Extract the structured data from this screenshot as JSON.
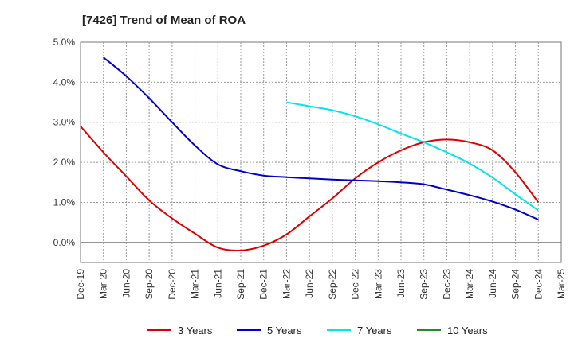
{
  "chart_data": {
    "type": "line",
    "title": "[7426]  Trend of Mean of ROA",
    "xlabel": "",
    "ylabel": "",
    "x_tick_labels": [
      "Dec-19",
      "Mar-20",
      "Jun-20",
      "Sep-20",
      "Dec-20",
      "Mar-21",
      "Jun-21",
      "Sep-21",
      "Dec-21",
      "Mar-22",
      "Jun-22",
      "Sep-22",
      "Dec-22",
      "Mar-23",
      "Jun-23",
      "Sep-23",
      "Dec-23",
      "Mar-24",
      "Jun-24",
      "Sep-24",
      "Dec-24",
      "Mar-25"
    ],
    "y_tick_labels": [
      "5.0%",
      "4.0%",
      "3.0%",
      "2.0%",
      "1.0%",
      "0.0%"
    ],
    "ylim": [
      -0.5,
      5.0
    ],
    "grid": true,
    "legend_position": "bottom",
    "series": [
      {
        "name": "3 Years",
        "color": "#dd0000",
        "x": [
          "Dec-19",
          "Mar-20",
          "Jun-20",
          "Sep-20",
          "Dec-20",
          "Mar-21",
          "Jun-21",
          "Sep-21",
          "Dec-21",
          "Mar-22",
          "Jun-22",
          "Sep-22",
          "Dec-22",
          "Mar-23",
          "Jun-23",
          "Sep-23",
          "Dec-23",
          "Mar-24",
          "Jun-24",
          "Sep-24",
          "Dec-24"
        ],
        "values": [
          2.9,
          2.25,
          1.65,
          1.05,
          0.6,
          0.22,
          -0.13,
          -0.2,
          -0.08,
          0.2,
          0.65,
          1.1,
          1.6,
          2.0,
          2.3,
          2.5,
          2.57,
          2.5,
          2.3,
          1.75,
          1.0
        ]
      },
      {
        "name": "5 Years",
        "color": "#0000cc",
        "x": [
          "Mar-20",
          "Jun-20",
          "Sep-20",
          "Dec-20",
          "Mar-21",
          "Jun-21",
          "Sep-21",
          "Dec-21",
          "Mar-22",
          "Jun-22",
          "Sep-22",
          "Dec-22",
          "Mar-23",
          "Jun-23",
          "Sep-23",
          "Dec-23",
          "Mar-24",
          "Jun-24",
          "Sep-24",
          "Dec-24"
        ],
        "values": [
          4.62,
          4.15,
          3.6,
          3.0,
          2.42,
          1.95,
          1.78,
          1.67,
          1.63,
          1.6,
          1.57,
          1.55,
          1.53,
          1.5,
          1.45,
          1.32,
          1.18,
          1.02,
          0.82,
          0.57
        ]
      },
      {
        "name": "7 Years",
        "color": "#00e5ee",
        "x": [
          "Mar-22",
          "Jun-22",
          "Sep-22",
          "Dec-22",
          "Mar-23",
          "Jun-23",
          "Sep-23",
          "Dec-23",
          "Mar-24",
          "Jun-24",
          "Sep-24",
          "Dec-24"
        ],
        "values": [
          3.5,
          3.4,
          3.3,
          3.15,
          2.95,
          2.72,
          2.5,
          2.25,
          1.97,
          1.62,
          1.2,
          0.8
        ]
      },
      {
        "name": "10 Years",
        "color": "#228b22",
        "x": [],
        "values": []
      }
    ]
  }
}
